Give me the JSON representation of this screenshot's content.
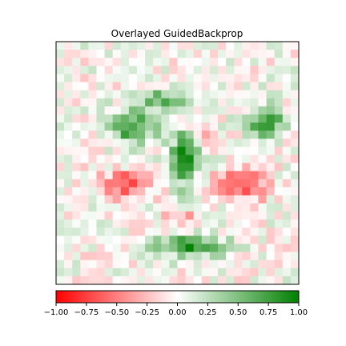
{
  "chart_data": {
    "type": "heatmap",
    "title": "Overlayed GuidedBackprop",
    "grid_rows": 30,
    "grid_cols": 30,
    "grid": false,
    "axes_ticks_visible": false,
    "value_range": [
      -1.0,
      1.0
    ],
    "colorbar": {
      "orientation": "horizontal",
      "placement": "bottom",
      "colors": {
        "negative": "#ff0000",
        "zero": "#ffffff",
        "positive": "#008000"
      },
      "ticks": [
        -1.0,
        -0.75,
        -0.5,
        -0.25,
        0.0,
        0.25,
        0.5,
        0.75,
        1.0
      ],
      "tick_labels": [
        "−1.00",
        "−0.75",
        "−0.50",
        "−0.25",
        "0.00",
        "0.25",
        "0.50",
        "0.75",
        "1.00"
      ]
    },
    "blobs": [
      {
        "region": "top-center arc",
        "row": 6.5,
        "col": 12.5,
        "rr": 1.2,
        "rc": 3.2,
        "value": 0.6
      },
      {
        "region": "upper-left cluster",
        "row": 10.0,
        "col": 9.0,
        "rr": 2.0,
        "rc": 3.0,
        "value": 0.8
      },
      {
        "region": "upper-right cluster",
        "row": 9.5,
        "col": 25.5,
        "rr": 2.0,
        "rc": 2.2,
        "value": 0.8
      },
      {
        "region": "center stem",
        "row": 14.0,
        "col": 15.3,
        "rr": 3.2,
        "rc": 1.6,
        "value": 0.95
      },
      {
        "region": "lower bar",
        "row": 24.8,
        "col": 16.0,
        "rr": 1.3,
        "rc": 4.5,
        "value": 0.85
      },
      {
        "region": "left red patch",
        "row": 17.2,
        "col": 8.0,
        "rr": 1.6,
        "rc": 2.8,
        "value": -0.75
      },
      {
        "region": "right red patch",
        "row": 17.3,
        "col": 22.5,
        "rr": 1.8,
        "rc": 3.0,
        "value": -0.75
      },
      {
        "region": "center red spot",
        "row": 10.5,
        "col": 17.5,
        "rr": 1.0,
        "rc": 1.2,
        "value": -0.5
      },
      {
        "region": "lower-center red spot",
        "row": 21.2,
        "col": 15.0,
        "rr": 1.0,
        "rc": 2.0,
        "value": -0.35
      }
    ]
  }
}
